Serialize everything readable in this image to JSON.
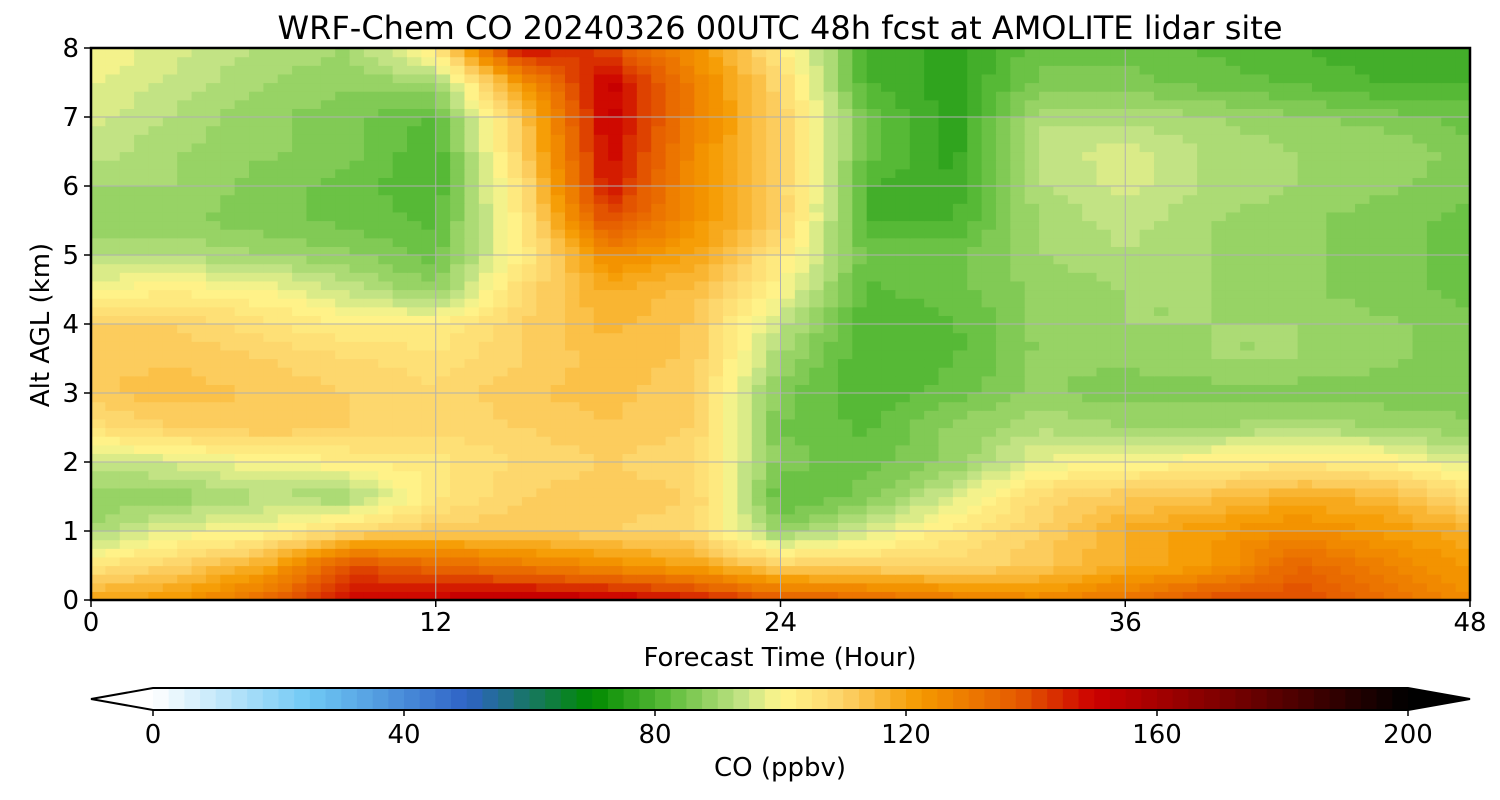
{
  "chart_data": {
    "type": "heatmap",
    "title": "WRF-Chem CO  20240326 00UTC 48h fcst at AMOLITE lidar site",
    "xlabel": "Forecast Time (Hour)",
    "ylabel": "Alt AGL (km)",
    "xlim": [
      0,
      48
    ],
    "ylim": [
      0,
      8
    ],
    "xticks": [
      0,
      12,
      24,
      36,
      48
    ],
    "yticks": [
      0,
      1,
      2,
      3,
      4,
      5,
      6,
      7,
      8
    ],
    "grid": true,
    "x": [
      0,
      3,
      6,
      9,
      12,
      15,
      18,
      21,
      24,
      27,
      30,
      33,
      36,
      39,
      42,
      45,
      48
    ],
    "y": [
      0.05,
      0.5,
      1,
      1.5,
      2,
      2.5,
      3,
      3.5,
      4,
      4.5,
      5,
      5.5,
      6,
      6.5,
      7,
      7.5,
      8
    ],
    "z": [
      [
        118,
        122,
        132,
        148,
        150,
        152,
        150,
        145,
        135,
        132,
        128,
        125,
        130,
        138,
        140,
        132,
        125
      ],
      [
        105,
        110,
        118,
        140,
        135,
        130,
        125,
        120,
        110,
        110,
        108,
        112,
        118,
        122,
        135,
        128,
        122
      ],
      [
        90,
        98,
        100,
        108,
        112,
        112,
        110,
        108,
        88,
        96,
        104,
        110,
        118,
        122,
        126,
        122,
        118
      ],
      [
        88,
        88,
        92,
        90,
        104,
        110,
        112,
        110,
        82,
        86,
        96,
        108,
        112,
        114,
        118,
        116,
        108
      ],
      [
        94,
        96,
        100,
        102,
        104,
        108,
        110,
        108,
        86,
        84,
        88,
        98,
        100,
        102,
        104,
        102,
        96
      ],
      [
        106,
        110,
        112,
        110,
        108,
        110,
        112,
        110,
        85,
        82,
        88,
        92,
        90,
        90,
        92,
        90,
        88
      ],
      [
        112,
        114,
        112,
        110,
        108,
        112,
        114,
        110,
        86,
        80,
        84,
        88,
        86,
        86,
        86,
        86,
        86
      ],
      [
        112,
        112,
        110,
        108,
        106,
        110,
        114,
        112,
        90,
        80,
        82,
        88,
        88,
        90,
        90,
        88,
        86
      ],
      [
        110,
        110,
        106,
        102,
        102,
        110,
        116,
        112,
        94,
        80,
        82,
        88,
        90,
        90,
        90,
        88,
        86
      ],
      [
        100,
        102,
        100,
        94,
        88,
        108,
        118,
        114,
        100,
        82,
        84,
        88,
        90,
        90,
        88,
        86,
        84
      ],
      [
        92,
        92,
        90,
        88,
        84,
        102,
        126,
        120,
        104,
        84,
        84,
        90,
        92,
        90,
        88,
        86,
        84
      ],
      [
        88,
        88,
        86,
        84,
        82,
        104,
        140,
        124,
        110,
        80,
        80,
        90,
        94,
        90,
        88,
        86,
        84
      ],
      [
        90,
        90,
        86,
        84,
        80,
        106,
        148,
        124,
        110,
        80,
        78,
        92,
        96,
        92,
        90,
        88,
        86
      ],
      [
        94,
        90,
        88,
        86,
        80,
        110,
        150,
        126,
        110,
        84,
        76,
        94,
        96,
        92,
        90,
        90,
        86
      ],
      [
        96,
        92,
        88,
        86,
        82,
        112,
        152,
        128,
        110,
        84,
        76,
        92,
        92,
        90,
        88,
        86,
        84
      ],
      [
        98,
        94,
        90,
        88,
        90,
        122,
        152,
        128,
        108,
        80,
        76,
        86,
        86,
        84,
        82,
        80,
        80
      ],
      [
        100,
        96,
        92,
        90,
        104,
        150,
        140,
        124,
        104,
        80,
        76,
        84,
        84,
        82,
        80,
        78,
        78
      ]
    ],
    "colorbar": {
      "label": "CO  (ppbv)",
      "min": 0,
      "max": 200,
      "ticks": [
        0,
        40,
        80,
        120,
        160,
        200
      ],
      "extend": "both",
      "stops": [
        {
          "v": 0,
          "c": "#ffffff"
        },
        {
          "v": 25,
          "c": "#6fc8f4"
        },
        {
          "v": 50,
          "c": "#2f63c6"
        },
        {
          "v": 70,
          "c": "#008a00"
        },
        {
          "v": 82,
          "c": "#5cbc3a"
        },
        {
          "v": 94,
          "c": "#c4e486"
        },
        {
          "v": 100,
          "c": "#fff68c"
        },
        {
          "v": 110,
          "c": "#fdd268"
        },
        {
          "v": 122,
          "c": "#f59a00"
        },
        {
          "v": 138,
          "c": "#e55a00"
        },
        {
          "v": 150,
          "c": "#cc0000"
        },
        {
          "v": 175,
          "c": "#6a0000"
        },
        {
          "v": 200,
          "c": "#000000"
        }
      ]
    }
  }
}
